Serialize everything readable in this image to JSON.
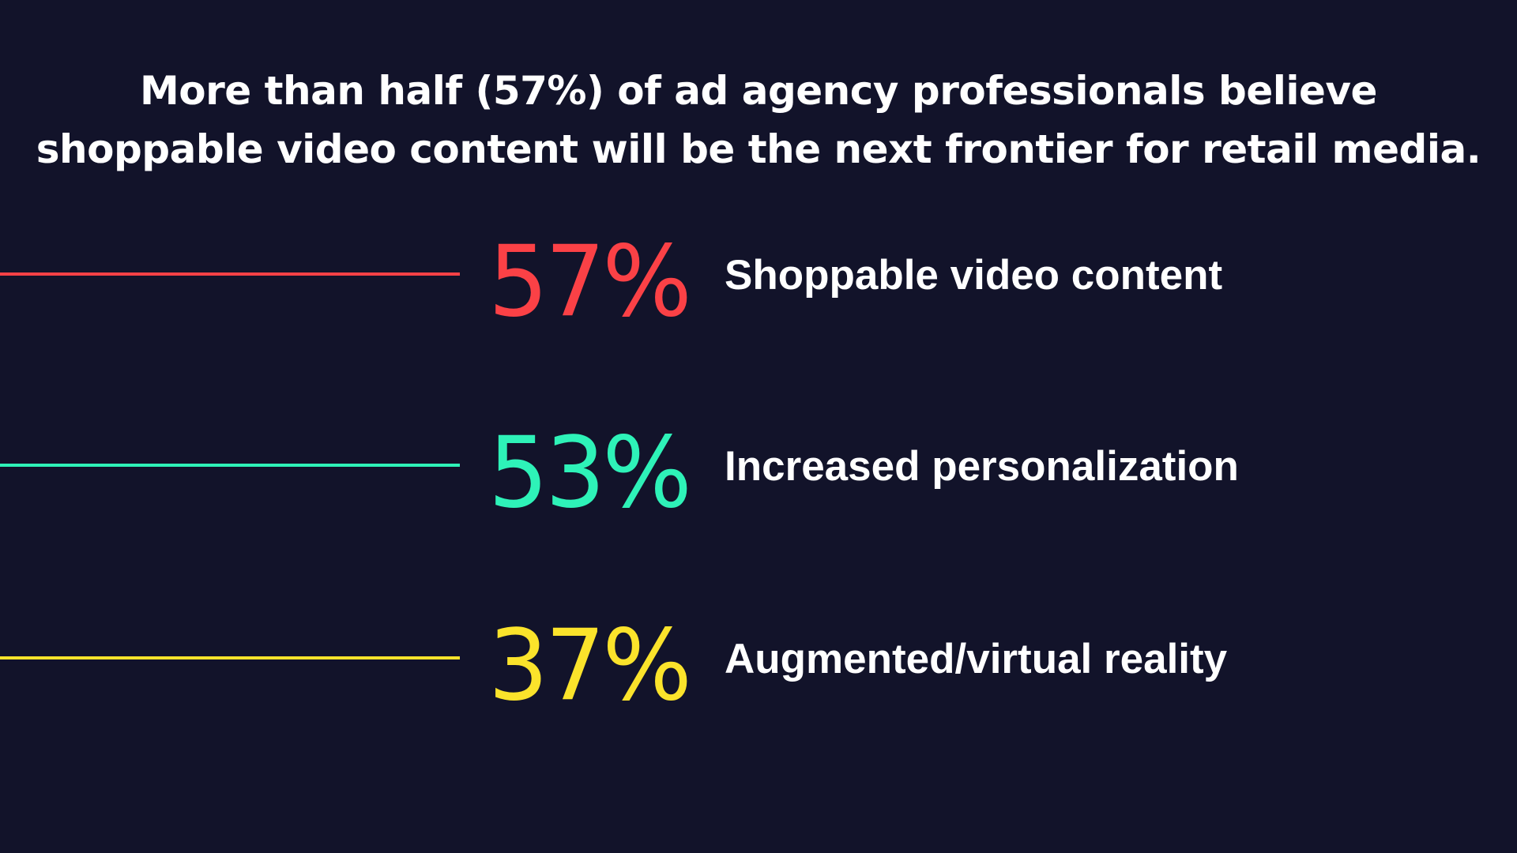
{
  "headline": {
    "line1": "More than half (57%) of ad agency professionals believe",
    "line2": "shoppable video content will be the next frontier for retail media."
  },
  "chart_data": {
    "type": "bar",
    "categories": [
      "Shoppable video content",
      "Increased personalization",
      "Augmented/virtual reality"
    ],
    "values": [
      57,
      53,
      37
    ],
    "value_labels": [
      "57%",
      "53%",
      "37%"
    ],
    "colors": [
      "#fb4146",
      "#2ef2b8",
      "#fbe32b"
    ],
    "title": "",
    "xlabel": "",
    "ylabel": ""
  }
}
